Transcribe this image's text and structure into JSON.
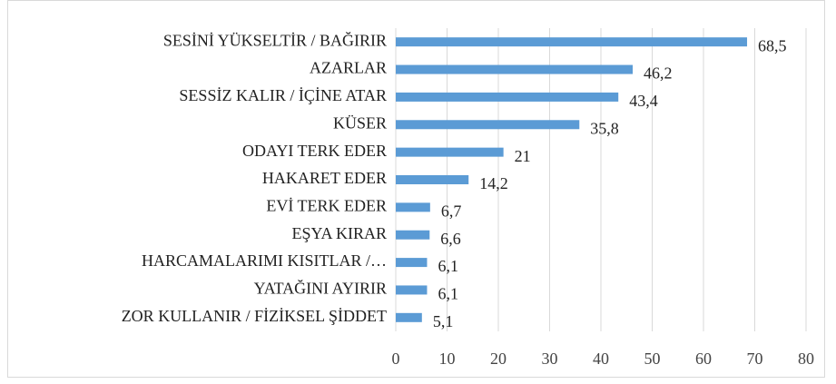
{
  "chart_data": {
    "type": "bar",
    "orientation": "horizontal",
    "categories": [
      "SESİNİ YÜKSELTİR / BAĞIRIR",
      "AZARLAR",
      "SESSİZ KALIR / İÇİNE ATAR",
      "KÜSER",
      "ODAYI TERK EDER",
      "HAKARET EDER",
      "EVİ TERK EDER",
      "EŞYA KIRAR",
      "HARCAMALARIMI KISITLAR /…",
      "YATAĞINI AYIRIR",
      "ZOR KULLANIR / FİZİKSEL ŞİDDET"
    ],
    "values": [
      68.5,
      46.2,
      43.4,
      35.8,
      21,
      14.2,
      6.7,
      6.6,
      6.1,
      6.1,
      5.1
    ],
    "value_labels": [
      "68,5",
      "46,2",
      "43,4",
      "35,8",
      "21",
      "14,2",
      "6,7",
      "6,6",
      "6,1",
      "6,1",
      "5,1"
    ],
    "color": "#5b9bd5",
    "xlim": [
      0,
      80
    ],
    "xticks": [
      0,
      10,
      20,
      30,
      40,
      50,
      60,
      70,
      80
    ],
    "grid": true
  }
}
